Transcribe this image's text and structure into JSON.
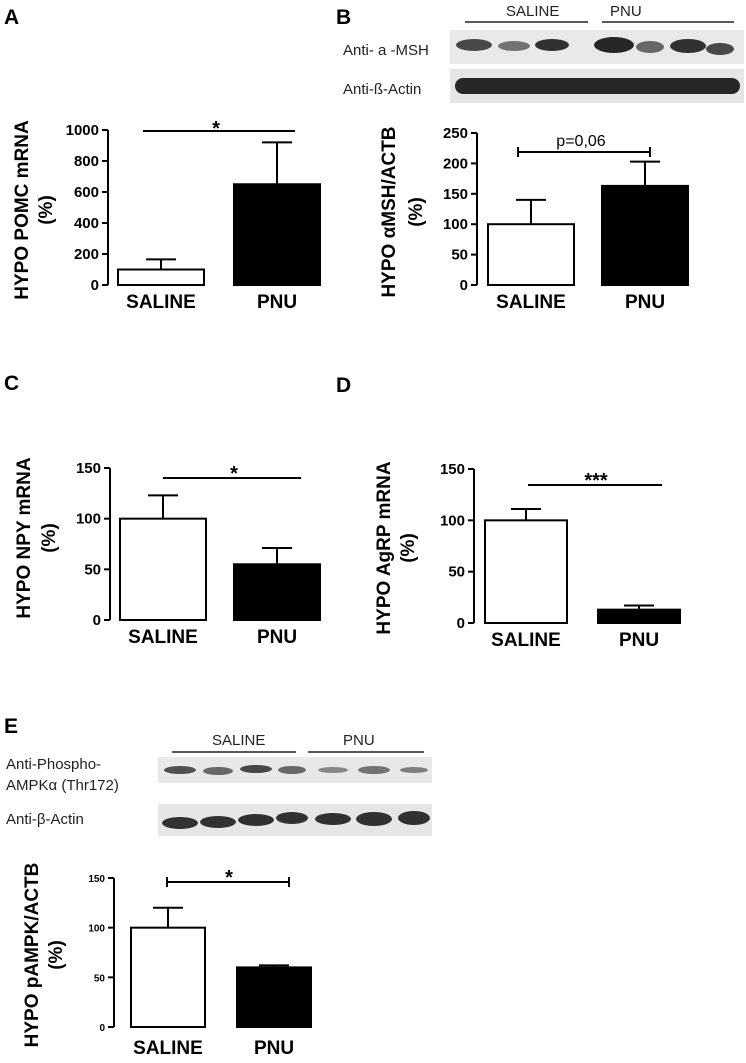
{
  "panels": {
    "A": {
      "letter": "A"
    },
    "B": {
      "letter": "B"
    },
    "C": {
      "letter": "C"
    },
    "D": {
      "letter": "D"
    },
    "E": {
      "letter": "E"
    }
  },
  "blots": {
    "B": {
      "groups": [
        "SALINE",
        "PNU"
      ],
      "rows": [
        "Anti- a -MSH",
        "Anti-ß-Actin"
      ]
    },
    "E": {
      "groups": [
        "SALINE",
        "PNU"
      ],
      "rows": [
        "Anti-Phospho-",
        "AMPKα (Thr172)",
        "Anti-β-Actin"
      ]
    }
  },
  "chart_data": [
    {
      "panel": "A",
      "type": "bar",
      "categories": [
        "SALINE",
        "PNU"
      ],
      "values": [
        100,
        650
      ],
      "errors": [
        65,
        270
      ],
      "fills": [
        "#ffffff",
        "#000000"
      ],
      "ylabel_lines": [
        "HYPO POMC mRNA",
        "(%)"
      ],
      "ylim": [
        0,
        1000
      ],
      "yticks": [
        0,
        200,
        400,
        600,
        800,
        1000
      ],
      "significance": "*"
    },
    {
      "panel": "B",
      "type": "bar",
      "categories": [
        "SALINE",
        "PNU"
      ],
      "values": [
        100,
        163
      ],
      "errors": [
        40,
        40
      ],
      "fills": [
        "#ffffff",
        "#000000"
      ],
      "ylabel_lines": [
        "HYPO αMSH/ACTB",
        "(%)"
      ],
      "ylim": [
        0,
        250
      ],
      "yticks": [
        0,
        50,
        100,
        150,
        200,
        250
      ],
      "significance": "p=0,06"
    },
    {
      "panel": "C",
      "type": "bar",
      "categories": [
        "SALINE",
        "PNU"
      ],
      "values": [
        100,
        55
      ],
      "errors": [
        23,
        16
      ],
      "fills": [
        "#ffffff",
        "#000000"
      ],
      "ylabel_lines": [
        "HYPO NPY mRNA",
        "(%)"
      ],
      "ylim": [
        0,
        150
      ],
      "yticks": [
        0,
        50,
        100,
        150
      ],
      "significance": "*"
    },
    {
      "panel": "D",
      "type": "bar",
      "categories": [
        "SALINE",
        "PNU"
      ],
      "values": [
        100,
        13
      ],
      "errors": [
        11,
        4
      ],
      "fills": [
        "#ffffff",
        "#000000"
      ],
      "ylabel_lines": [
        "HYPO AgRP mRNA",
        "(%)"
      ],
      "ylim": [
        0,
        150
      ],
      "yticks": [
        0,
        50,
        100,
        150
      ],
      "significance": "***"
    },
    {
      "panel": "E",
      "type": "bar",
      "categories": [
        "SALINE",
        "PNU"
      ],
      "values": [
        100,
        60
      ],
      "errors": [
        20,
        2
      ],
      "fills": [
        "#ffffff",
        "#000000"
      ],
      "ylabel_lines": [
        "HYPO pAMPK/ACTB",
        "(%)"
      ],
      "ylim": [
        0,
        150
      ],
      "yticks": [
        0,
        50,
        100,
        150
      ],
      "significance": "*"
    }
  ]
}
